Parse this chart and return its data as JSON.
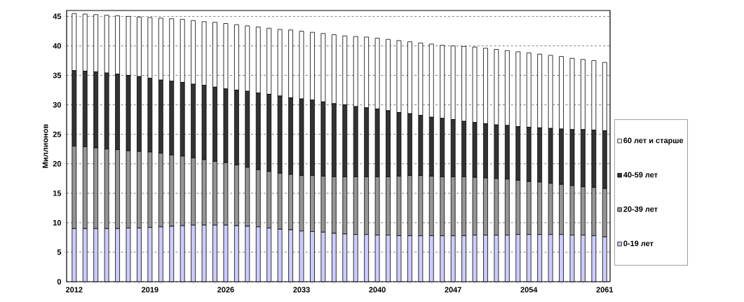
{
  "chart_data": {
    "type": "bar",
    "stacked": true,
    "ylabel": "Миллионов",
    "categories": [
      "2012",
      null,
      null,
      null,
      null,
      null,
      null,
      "2019",
      null,
      null,
      null,
      null,
      null,
      null,
      "2026",
      null,
      null,
      null,
      null,
      null,
      null,
      "2033",
      null,
      null,
      null,
      null,
      null,
      null,
      "2040",
      null,
      null,
      null,
      null,
      null,
      null,
      "2047",
      null,
      null,
      null,
      null,
      null,
      null,
      "2054",
      null,
      null,
      null,
      null,
      null,
      null,
      "2061"
    ],
    "series": [
      {
        "name": "0-19 лет",
        "color": "#ccccff",
        "values": [
          9.0,
          9.0,
          9.0,
          9.0,
          9.0,
          9.1,
          9.1,
          9.2,
          9.3,
          9.4,
          9.5,
          9.6,
          9.6,
          9.6,
          9.6,
          9.5,
          9.4,
          9.3,
          9.1,
          8.9,
          8.8,
          8.6,
          8.5,
          8.4,
          8.2,
          8.1,
          8.0,
          8.0,
          7.9,
          7.9,
          7.8,
          7.8,
          7.8,
          7.8,
          7.8,
          7.8,
          7.8,
          7.9,
          7.9,
          7.9,
          7.9,
          8.0,
          8.0,
          8.0,
          8.0,
          8.0,
          7.9,
          7.9,
          7.8,
          7.6
        ]
      },
      {
        "name": "20-39 лет",
        "color": "#969696",
        "values": [
          14.0,
          13.9,
          13.7,
          13.5,
          13.4,
          13.1,
          13.0,
          12.8,
          12.5,
          12.1,
          11.8,
          11.4,
          11.1,
          10.8,
          10.6,
          10.3,
          10.0,
          9.7,
          9.6,
          9.5,
          9.4,
          9.4,
          9.5,
          9.5,
          9.6,
          9.7,
          9.8,
          9.8,
          9.9,
          9.9,
          10.1,
          10.2,
          10.2,
          10.1,
          10.0,
          10.0,
          10.0,
          9.8,
          9.7,
          9.6,
          9.5,
          9.2,
          9.0,
          8.9,
          8.7,
          8.5,
          8.4,
          8.2,
          8.2,
          8.2
        ]
      },
      {
        "name": "40-59 лет",
        "color": "#333333",
        "values": [
          12.8,
          12.8,
          12.9,
          12.9,
          12.8,
          12.8,
          12.7,
          12.5,
          12.4,
          12.5,
          12.5,
          12.5,
          12.6,
          12.6,
          12.5,
          12.7,
          12.9,
          13.0,
          13.1,
          13.1,
          13.0,
          13.0,
          12.8,
          12.6,
          12.4,
          12.2,
          11.9,
          11.7,
          11.5,
          11.2,
          10.8,
          10.5,
          10.2,
          10.0,
          9.9,
          9.7,
          9.4,
          9.3,
          9.2,
          9.1,
          9.1,
          9.1,
          9.2,
          9.2,
          9.3,
          9.4,
          9.5,
          9.7,
          9.7,
          9.8
        ]
      },
      {
        "name": "60 лет и старше",
        "color": "#ffffff",
        "values": [
          9.7,
          9.7,
          9.7,
          9.8,
          9.9,
          10.0,
          10.1,
          10.3,
          10.5,
          10.6,
          10.7,
          10.8,
          10.8,
          11.0,
          11.1,
          11.1,
          11.1,
          11.2,
          11.2,
          11.3,
          11.5,
          11.5,
          11.5,
          11.6,
          11.7,
          11.7,
          11.9,
          12.0,
          12.0,
          12.1,
          12.2,
          12.2,
          12.3,
          12.4,
          12.4,
          12.5,
          12.7,
          12.8,
          12.8,
          12.8,
          12.7,
          12.7,
          12.6,
          12.5,
          12.4,
          12.3,
          12.1,
          11.9,
          11.8,
          11.6
        ]
      }
    ],
    "ylim": [
      0,
      46
    ],
    "yticks": [
      0,
      5,
      10,
      15,
      20,
      25,
      30,
      35,
      40,
      45
    ],
    "grid": "y",
    "legend": "right"
  }
}
